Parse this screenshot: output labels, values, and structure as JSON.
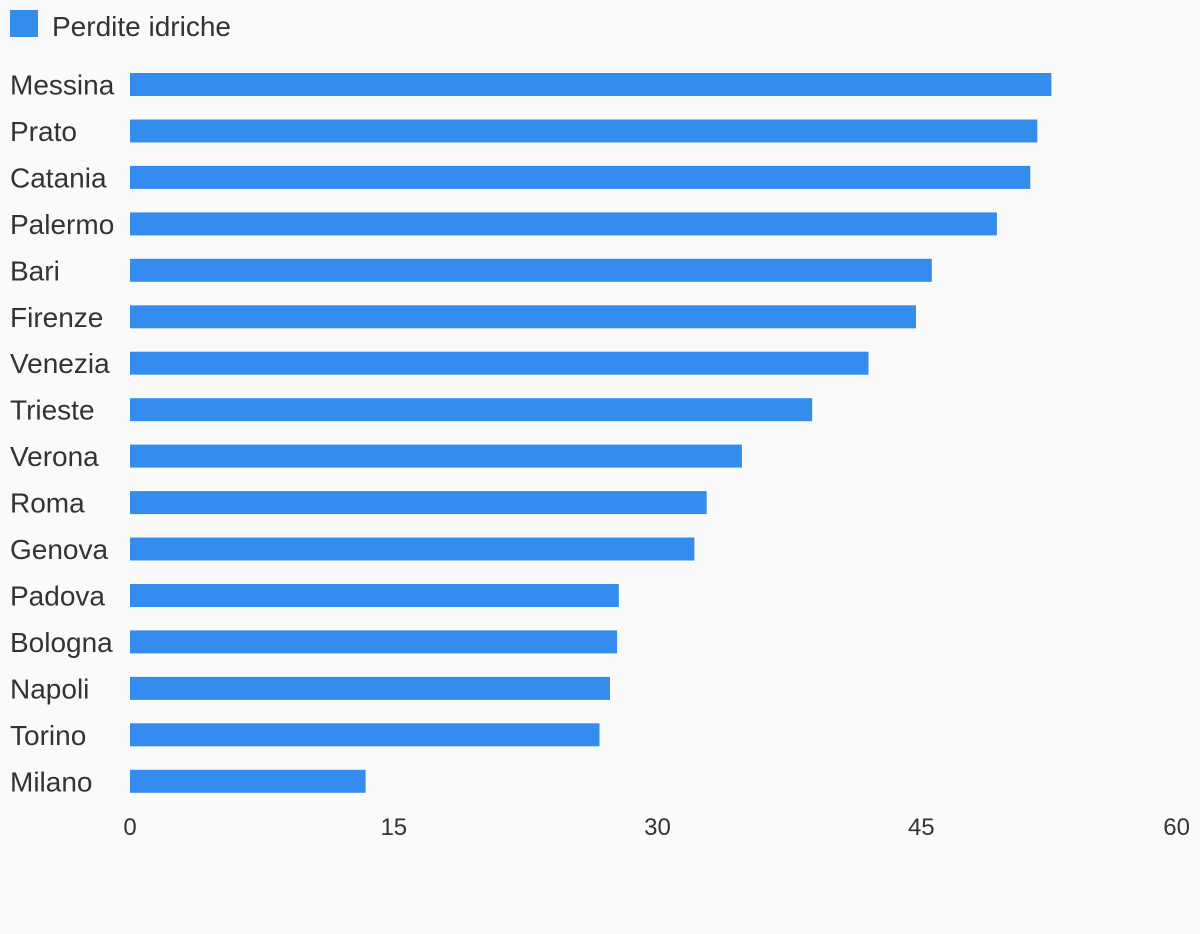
{
  "chart_data": {
    "type": "bar",
    "orientation": "horizontal",
    "categories": [
      "Messina",
      "Prato",
      "Catania",
      "Palermo",
      "Bari",
      "Firenze",
      "Venezia",
      "Trieste",
      "Verona",
      "Roma",
      "Genova",
      "Padova",
      "Bologna",
      "Napoli",
      "Torino",
      "Milano"
    ],
    "series": [
      {
        "name": "Perdite idriche",
        "color": "#348cee",
        "values": [
          52.4,
          51.6,
          51.2,
          49.3,
          45.6,
          44.7,
          42.0,
          38.8,
          34.8,
          32.8,
          32.1,
          27.8,
          27.7,
          27.3,
          26.7,
          13.4
        ]
      }
    ],
    "xlim": [
      0,
      60
    ],
    "xticks": [
      0,
      15,
      30,
      45,
      60
    ],
    "grid": false,
    "legend_position": "top-left"
  }
}
